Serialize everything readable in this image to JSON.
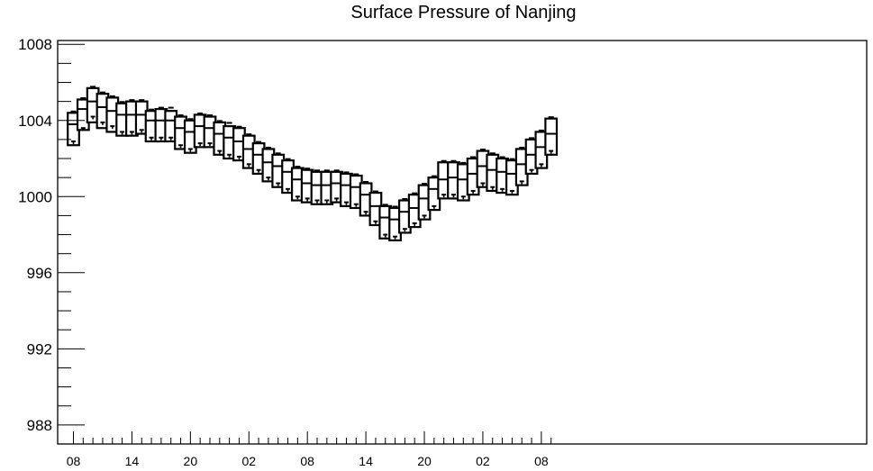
{
  "chart_data": {
    "type": "boxplot",
    "title": "Surface Pressure of Nanjing",
    "xlabel": "",
    "ylabel": "",
    "ylim": [
      987.0,
      1008.2
    ],
    "y_ticks": [
      988,
      992,
      996,
      1000,
      1004,
      1008
    ],
    "x_tick_labels": [
      "08",
      "14",
      "20",
      "02",
      "08",
      "14",
      "20",
      "02",
      "08"
    ],
    "x_tick_hours": [
      0,
      6,
      12,
      18,
      24,
      30,
      36,
      42,
      48
    ],
    "hour_step": 1,
    "grid": false,
    "series": [
      {
        "boxes": [
          {
            "hour": 0,
            "q1": 1002.7,
            "median": 1003.8,
            "q3": 1004.4,
            "max": 1004.4,
            "min": 1002.7,
            "mean": 1002.9
          },
          {
            "hour": 1,
            "q1": 1003.5,
            "median": 1004.6,
            "q3": 1005.1,
            "max": 1005.1,
            "min": 1003.5,
            "mean": 1003.6
          },
          {
            "hour": 2,
            "q1": 1003.9,
            "median": 1005.0,
            "q3": 1005.7,
            "max": 1005.7,
            "min": 1003.9,
            "mean": 1004.2
          },
          {
            "hour": 3,
            "q1": 1003.6,
            "median": 1004.7,
            "q3": 1005.4,
            "max": 1005.4,
            "min": 1003.6,
            "mean": 1003.9
          },
          {
            "hour": 4,
            "q1": 1003.4,
            "median": 1004.5,
            "q3": 1005.2,
            "max": 1005.2,
            "min": 1003.4,
            "mean": 1003.7
          },
          {
            "hour": 5,
            "q1": 1003.2,
            "median": 1004.3,
            "q3": 1004.9,
            "max": 1004.9,
            "min": 1003.2,
            "mean": 1003.4
          },
          {
            "hour": 6,
            "q1": 1003.2,
            "median": 1004.3,
            "q3": 1005.0,
            "max": 1005.0,
            "min": 1003.2,
            "mean": 1003.4
          },
          {
            "hour": 7,
            "q1": 1003.3,
            "median": 1004.3,
            "q3": 1005.0,
            "max": 1005.0,
            "min": 1003.3,
            "mean": 1003.5
          },
          {
            "hour": 8,
            "q1": 1002.9,
            "median": 1004.0,
            "q3": 1004.5,
            "max": 1004.5,
            "min": 1002.9,
            "mean": 1003.1
          },
          {
            "hour": 9,
            "q1": 1002.9,
            "median": 1004.0,
            "q3": 1004.6,
            "max": 1004.6,
            "min": 1002.9,
            "mean": 1003.1
          },
          {
            "hour": 10,
            "q1": 1002.9,
            "median": 1004.0,
            "q3": 1004.5,
            "max": 1004.6,
            "min": 1002.9,
            "mean": 1003.1
          },
          {
            "hour": 11,
            "q1": 1002.5,
            "median": 1003.6,
            "q3": 1004.2,
            "max": 1004.2,
            "min": 1002.5,
            "mean": 1002.7
          },
          {
            "hour": 12,
            "q1": 1002.3,
            "median": 1003.4,
            "q3": 1004.0,
            "max": 1004.0,
            "min": 1002.3,
            "mean": 1002.5
          },
          {
            "hour": 13,
            "q1": 1002.6,
            "median": 1003.7,
            "q3": 1004.3,
            "max": 1004.3,
            "min": 1002.6,
            "mean": 1002.8
          },
          {
            "hour": 14,
            "q1": 1002.6,
            "median": 1003.6,
            "q3": 1004.2,
            "max": 1004.2,
            "min": 1002.6,
            "mean": 1002.8
          },
          {
            "hour": 15,
            "q1": 1002.2,
            "median": 1003.3,
            "q3": 1003.9,
            "max": 1003.9,
            "min": 1002.2,
            "mean": 1002.4
          },
          {
            "hour": 16,
            "q1": 1002.0,
            "median": 1003.1,
            "q3": 1003.7,
            "max": 1003.8,
            "min": 1002.0,
            "mean": 1002.2
          },
          {
            "hour": 17,
            "q1": 1001.9,
            "median": 1002.9,
            "q3": 1003.6,
            "max": 1003.6,
            "min": 1001.9,
            "mean": 1002.1
          },
          {
            "hour": 18,
            "q1": 1001.5,
            "median": 1002.5,
            "q3": 1003.2,
            "max": 1003.2,
            "min": 1001.5,
            "mean": 1001.7
          },
          {
            "hour": 19,
            "q1": 1001.2,
            "median": 1002.2,
            "q3": 1002.8,
            "max": 1002.8,
            "min": 1001.2,
            "mean": 1001.4
          },
          {
            "hour": 20,
            "q1": 1000.8,
            "median": 1001.8,
            "q3": 1002.5,
            "max": 1002.5,
            "min": 1000.8,
            "mean": 1001.0
          },
          {
            "hour": 21,
            "q1": 1000.5,
            "median": 1001.6,
            "q3": 1002.2,
            "max": 1002.2,
            "min": 1000.5,
            "mean": 1000.7
          },
          {
            "hour": 22,
            "q1": 1000.2,
            "median": 1001.3,
            "q3": 1001.9,
            "max": 1001.9,
            "min": 1000.2,
            "mean": 1000.4
          },
          {
            "hour": 23,
            "q1": 999.8,
            "median": 1000.9,
            "q3": 1001.5,
            "max": 1001.5,
            "min": 999.8,
            "mean": 1000.0
          },
          {
            "hour": 24,
            "q1": 999.7,
            "median": 1000.7,
            "q3": 1001.4,
            "max": 1001.4,
            "min": 999.7,
            "mean": 999.9
          },
          {
            "hour": 25,
            "q1": 999.6,
            "median": 1000.6,
            "q3": 1001.3,
            "max": 1001.3,
            "min": 999.6,
            "mean": 999.8
          },
          {
            "hour": 26,
            "q1": 999.6,
            "median": 1000.6,
            "q3": 1001.3,
            "max": 1001.3,
            "min": 999.6,
            "mean": 999.8
          },
          {
            "hour": 27,
            "q1": 999.7,
            "median": 1000.7,
            "q3": 1001.3,
            "max": 1001.3,
            "min": 999.7,
            "mean": 999.9
          },
          {
            "hour": 28,
            "q1": 999.5,
            "median": 1000.6,
            "q3": 1001.2,
            "max": 1001.2,
            "min": 999.5,
            "mean": 999.7
          },
          {
            "hour": 29,
            "q1": 999.4,
            "median": 1000.5,
            "q3": 1001.1,
            "max": 1001.1,
            "min": 999.4,
            "mean": 999.6
          },
          {
            "hour": 30,
            "q1": 999.0,
            "median": 1000.1,
            "q3": 1000.7,
            "max": 1000.7,
            "min": 999.0,
            "mean": 999.2
          },
          {
            "hour": 31,
            "q1": 998.5,
            "median": 999.5,
            "q3": 1000.2,
            "max": 1000.2,
            "min": 998.5,
            "mean": 998.7
          },
          {
            "hour": 32,
            "q1": 997.8,
            "median": 998.9,
            "q3": 999.5,
            "max": 999.5,
            "min": 997.8,
            "mean": 998.0
          },
          {
            "hour": 33,
            "q1": 997.7,
            "median": 998.8,
            "q3": 999.4,
            "max": 999.4,
            "min": 997.7,
            "mean": 997.9
          },
          {
            "hour": 34,
            "q1": 998.1,
            "median": 999.2,
            "q3": 999.8,
            "max": 999.8,
            "min": 998.1,
            "mean": 998.3
          },
          {
            "hour": 35,
            "q1": 998.4,
            "median": 999.4,
            "q3": 1000.1,
            "max": 1000.1,
            "min": 998.4,
            "mean": 998.6
          },
          {
            "hour": 36,
            "q1": 998.8,
            "median": 999.9,
            "q3": 1000.6,
            "max": 1000.6,
            "min": 998.8,
            "mean": 999.0
          },
          {
            "hour": 37,
            "q1": 999.3,
            "median": 1000.4,
            "q3": 1001.0,
            "max": 1001.0,
            "min": 999.3,
            "mean": 999.5
          },
          {
            "hour": 38,
            "q1": 999.9,
            "median": 1000.9,
            "q3": 1001.8,
            "max": 1001.8,
            "min": 999.9,
            "mean": 1000.1
          },
          {
            "hour": 39,
            "q1": 999.9,
            "median": 1001.0,
            "q3": 1001.8,
            "max": 1001.8,
            "min": 999.9,
            "mean": 1000.1
          },
          {
            "hour": 40,
            "q1": 999.8,
            "median": 1000.9,
            "q3": 1001.7,
            "max": 1001.7,
            "min": 999.8,
            "mean": 1000.0
          },
          {
            "hour": 41,
            "q1": 1000.1,
            "median": 1001.2,
            "q3": 1002.0,
            "max": 1002.0,
            "min": 1000.1,
            "mean": 1000.3
          },
          {
            "hour": 42,
            "q1": 1000.5,
            "median": 1001.6,
            "q3": 1002.4,
            "max": 1002.4,
            "min": 1000.5,
            "mean": 1000.7
          },
          {
            "hour": 43,
            "q1": 1000.3,
            "median": 1001.4,
            "q3": 1002.2,
            "max": 1002.2,
            "min": 1000.3,
            "mean": 1000.5
          },
          {
            "hour": 44,
            "q1": 1000.2,
            "median": 1001.3,
            "q3": 1002.0,
            "max": 1002.0,
            "min": 1000.2,
            "mean": 1000.4
          },
          {
            "hour": 45,
            "q1": 1000.1,
            "median": 1001.2,
            "q3": 1001.9,
            "max": 1001.9,
            "min": 1000.1,
            "mean": 1000.3
          },
          {
            "hour": 46,
            "q1": 1000.6,
            "median": 1001.7,
            "q3": 1002.5,
            "max": 1002.5,
            "min": 1000.6,
            "mean": 1000.8
          },
          {
            "hour": 47,
            "q1": 1001.2,
            "median": 1002.2,
            "q3": 1003.0,
            "max": 1003.0,
            "min": 1001.2,
            "mean": 1001.4
          },
          {
            "hour": 48,
            "q1": 1001.5,
            "median": 1002.6,
            "q3": 1003.4,
            "max": 1003.4,
            "min": 1001.5,
            "mean": 1001.7
          },
          {
            "hour": 49,
            "q1": 1002.2,
            "median": 1003.3,
            "q3": 1004.1,
            "max": 1004.1,
            "min": 1002.2,
            "mean": 1002.4
          }
        ]
      }
    ]
  }
}
